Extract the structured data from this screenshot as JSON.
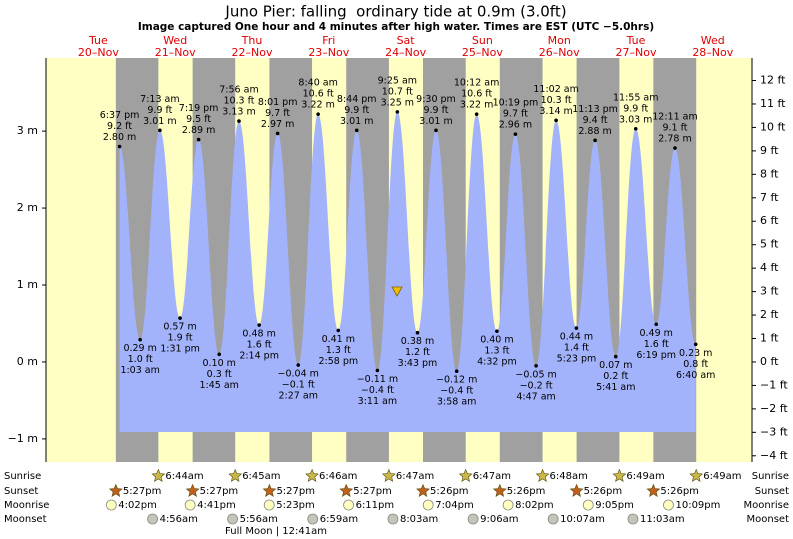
{
  "chart_data": {
    "type": "area",
    "title": "Juno Pier: falling  ordinary tide at 0.9m (3.0ft)",
    "subtitle": "Image captured One hour and 4 minutes after high water. Times are EST (UTC −5.0hrs)",
    "days": [
      {
        "dow": "Tue",
        "date": "20–Nov"
      },
      {
        "dow": "Wed",
        "date": "21–Nov"
      },
      {
        "dow": "Thu",
        "date": "22–Nov"
      },
      {
        "dow": "Fri",
        "date": "23–Nov"
      },
      {
        "dow": "Sat",
        "date": "24–Nov"
      },
      {
        "dow": "Sun",
        "date": "25–Nov"
      },
      {
        "dow": "Mon",
        "date": "26–Nov"
      },
      {
        "dow": "Tue",
        "date": "27–Nov"
      },
      {
        "dow": "Wed",
        "date": "28–Nov"
      }
    ],
    "x": [
      "6:37 pm",
      "1:03 am",
      "7:13 am",
      "1:31 pm",
      "7:19 pm",
      "1:45 am",
      "7:56 am",
      "2:14 pm",
      "8:01 pm",
      "2:27 am",
      "8:40 am",
      "2:58 pm",
      "8:44 pm",
      "3:11 am",
      "9:25 am",
      "3:43 pm",
      "9:30 pm",
      "3:58 am",
      "10:12 am",
      "4:32 pm",
      "10:19 pm",
      "4:47 am",
      "11:02 am",
      "5:23 pm",
      "11:13 pm",
      "5:41 am",
      "11:55 am",
      "6:19 pm",
      "12:11 am",
      "6:40 am"
    ],
    "values": [
      2.8,
      0.29,
      3.01,
      0.57,
      2.89,
      0.1,
      3.13,
      0.48,
      2.97,
      -0.04,
      3.22,
      0.41,
      3.01,
      -0.11,
      3.25,
      0.38,
      3.01,
      -0.12,
      3.22,
      0.4,
      2.96,
      -0.05,
      3.14,
      0.44,
      2.88,
      0.07,
      3.03,
      0.49,
      2.78,
      0.23
    ],
    "value_labels": [
      "2.80 m",
      "0.29 m",
      "3.01 m",
      "0.57 m",
      "2.89 m",
      "0.10 m",
      "3.13 m",
      "0.48 m",
      "2.97 m",
      "−0.04 m",
      "3.22 m",
      "0.41 m",
      "3.01 m",
      "−0.11 m",
      "3.25 m",
      "0.38 m",
      "3.01 m",
      "−0.12 m",
      "3.22 m",
      "0.40 m",
      "2.96 m",
      "−0.05 m",
      "3.14 m",
      "0.44 m",
      "2.88 m",
      "0.07 m",
      "3.03 m",
      "0.49 m",
      "2.78 m",
      "0.23 m"
    ],
    "ft_labels": [
      "9.2 ft",
      "1.0 ft",
      "9.9 ft",
      "1.9 ft",
      "9.5 ft",
      "0.3 ft",
      "10.3 ft",
      "1.6 ft",
      "9.7 ft",
      "−0.1 ft",
      "10.6 ft",
      "1.3 ft",
      "9.9 ft",
      "−0.4 ft",
      "10.7 ft",
      "1.2 ft",
      "9.9 ft",
      "−0.4 ft",
      "10.6 ft",
      "1.3 ft",
      "9.7 ft",
      "−0.2 ft",
      "10.3 ft",
      "1.4 ft",
      "9.4 ft",
      "0.2 ft",
      "9.9 ft",
      "1.6 ft",
      "9.1 ft",
      "0.8 ft"
    ],
    "color": "#a3b3fb",
    "day_color": "#ffffc4",
    "night_color": "#a0a0a0",
    "ylim": [
      -1.3,
      3.95
    ],
    "yticks": [
      {
        "value": -1,
        "label": "−1 m"
      },
      {
        "value": 0,
        "label": "0 m"
      },
      {
        "value": 1,
        "label": "1 m"
      },
      {
        "value": 2,
        "label": "2 m"
      },
      {
        "value": 3,
        "label": "3 m"
      }
    ],
    "y2lim": [
      -4.265,
      12.96
    ],
    "y2ticks": [
      {
        "value": -4,
        "label": "−4 ft"
      },
      {
        "value": -3,
        "label": "−3 ft"
      },
      {
        "value": -2,
        "label": "−2 ft"
      },
      {
        "value": -1,
        "label": "−1 ft"
      },
      {
        "value": 0,
        "label": "0 ft"
      },
      {
        "value": 1,
        "label": "1 ft"
      },
      {
        "value": 2,
        "label": "2 ft"
      },
      {
        "value": 3,
        "label": "3 ft"
      },
      {
        "value": 4,
        "label": "4 ft"
      },
      {
        "value": 5,
        "label": "5 ft"
      },
      {
        "value": 6,
        "label": "6 ft"
      },
      {
        "value": 7,
        "label": "7 ft"
      },
      {
        "value": 8,
        "label": "8 ft"
      },
      {
        "value": 9,
        "label": "9 ft"
      },
      {
        "value": 10,
        "label": "10 ft"
      },
      {
        "value": 11,
        "label": "11 ft"
      },
      {
        "value": 12,
        "label": "12 ft"
      }
    ],
    "astro": [
      {
        "name": "Sunrise",
        "color": "#c8b848",
        "times": [
          "6:44am",
          "6:45am",
          "6:46am",
          "6:47am",
          "6:47am",
          "6:48am",
          "6:49am",
          "6:49am"
        ]
      },
      {
        "name": "Sunset",
        "color": "#c0601a",
        "times": [
          "5:27pm",
          "5:27pm",
          "5:27pm",
          "5:27pm",
          "5:26pm",
          "5:26pm",
          "5:26pm",
          "5:26pm"
        ]
      },
      {
        "name": "Moonrise",
        "color": "#ffffc0",
        "times": [
          "4:02pm",
          "4:41pm",
          "5:23pm",
          "6:11pm",
          "7:04pm",
          "8:02pm",
          "9:05pm",
          "10:09pm"
        ]
      },
      {
        "name": "Moonset",
        "color": "#c4c4b8",
        "times": [
          "4:56am",
          "5:56am",
          "6:59am",
          "8:03am",
          "9:06am",
          "10:07am",
          "11:03am"
        ]
      }
    ],
    "full_moon": "Full Moon | 12:41am"
  }
}
